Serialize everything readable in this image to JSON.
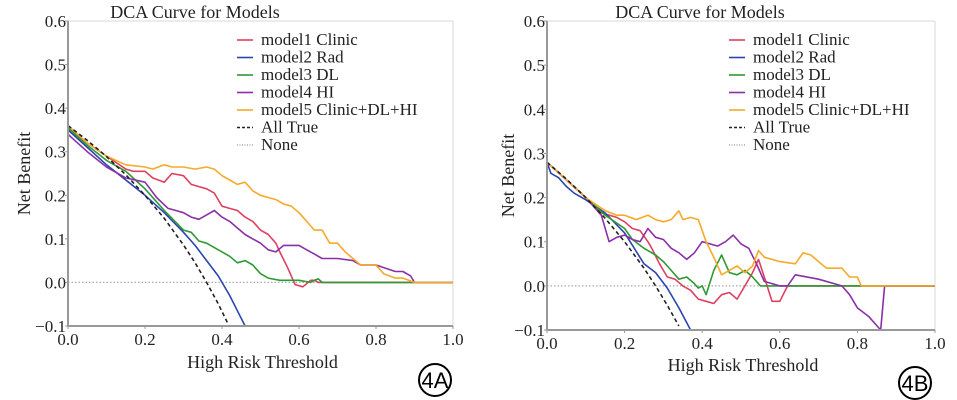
{
  "chart_data": [
    {
      "type": "line",
      "panel_label": "4A",
      "title": "DCA Curve for Models",
      "xlabel": "High Risk Threshold",
      "ylabel": "Net Benefit",
      "xlim": [
        0.0,
        1.0
      ],
      "ylim": [
        -0.1,
        0.6
      ],
      "xticks": [
        "0.0",
        "0.2",
        "0.4",
        "0.6",
        "0.8",
        "1.0"
      ],
      "yticks": [
        "−0.1",
        "0.0",
        "0.1",
        "0.2",
        "0.3",
        "0.4",
        "0.5",
        "0.6"
      ],
      "legend_position": "top-right",
      "grid": false,
      "series": [
        {
          "name": "model1 Clinic",
          "color": "#e0405f",
          "style": "solid",
          "x": [
            0.0,
            0.05,
            0.1,
            0.15,
            0.17,
            0.2,
            0.22,
            0.25,
            0.27,
            0.3,
            0.32,
            0.34,
            0.36,
            0.38,
            0.4,
            0.42,
            0.44,
            0.46,
            0.48,
            0.5,
            0.52,
            0.54,
            0.55,
            0.57,
            0.59,
            0.61,
            0.63,
            0.64,
            0.65,
            0.66,
            0.7,
            1.0
          ],
          "y": [
            0.355,
            0.32,
            0.29,
            0.26,
            0.255,
            0.255,
            0.24,
            0.23,
            0.25,
            0.245,
            0.225,
            0.22,
            0.215,
            0.205,
            0.175,
            0.17,
            0.165,
            0.15,
            0.14,
            0.12,
            0.11,
            0.09,
            0.07,
            0.035,
            -0.005,
            -0.01,
            0.005,
            0.005,
            0.0,
            0.0,
            0.0,
            0.0
          ]
        },
        {
          "name": "model2 Rad",
          "color": "#2a45b0",
          "style": "solid",
          "x": [
            0.0,
            0.05,
            0.1,
            0.15,
            0.2,
            0.25,
            0.3,
            0.33,
            0.36,
            0.39,
            0.42,
            0.44,
            0.46
          ],
          "y": [
            0.35,
            0.31,
            0.27,
            0.235,
            0.2,
            0.16,
            0.115,
            0.085,
            0.05,
            0.015,
            -0.03,
            -0.065,
            -0.1
          ]
        },
        {
          "name": "model3 DL",
          "color": "#2e9a35",
          "style": "solid",
          "x": [
            0.0,
            0.05,
            0.1,
            0.15,
            0.2,
            0.25,
            0.3,
            0.32,
            0.34,
            0.36,
            0.38,
            0.4,
            0.42,
            0.44,
            0.46,
            0.48,
            0.5,
            0.52,
            0.55,
            0.6,
            0.63,
            0.64,
            0.65,
            0.66,
            0.7,
            1.0
          ],
          "y": [
            0.355,
            0.315,
            0.28,
            0.255,
            0.215,
            0.165,
            0.12,
            0.115,
            0.095,
            0.09,
            0.08,
            0.07,
            0.06,
            0.045,
            0.05,
            0.04,
            0.02,
            0.01,
            0.005,
            0.005,
            0.0,
            0.005,
            0.008,
            0.0,
            0.0,
            0.0
          ]
        },
        {
          "name": "model4 HI",
          "color": "#8a2fa8",
          "style": "solid",
          "x": [
            0.0,
            0.05,
            0.1,
            0.15,
            0.2,
            0.23,
            0.26,
            0.28,
            0.3,
            0.32,
            0.34,
            0.36,
            0.38,
            0.4,
            0.42,
            0.44,
            0.46,
            0.48,
            0.5,
            0.52,
            0.54,
            0.56,
            0.58,
            0.6,
            0.62,
            0.64,
            0.66,
            0.7,
            0.74,
            0.76,
            0.8,
            0.85,
            0.87,
            0.89,
            0.9,
            1.0
          ],
          "y": [
            0.34,
            0.3,
            0.265,
            0.24,
            0.23,
            0.195,
            0.17,
            0.165,
            0.16,
            0.15,
            0.145,
            0.155,
            0.165,
            0.15,
            0.14,
            0.125,
            0.11,
            0.1,
            0.09,
            0.075,
            0.07,
            0.085,
            0.085,
            0.085,
            0.075,
            0.065,
            0.055,
            0.055,
            0.05,
            0.04,
            0.04,
            0.025,
            0.025,
            0.015,
            0.0,
            0.0
          ]
        },
        {
          "name": "model5 Clinic+DL+HI",
          "color": "#f5aa2a",
          "style": "solid",
          "x": [
            0.0,
            0.05,
            0.1,
            0.15,
            0.2,
            0.22,
            0.25,
            0.27,
            0.3,
            0.33,
            0.36,
            0.38,
            0.4,
            0.42,
            0.44,
            0.46,
            0.48,
            0.5,
            0.52,
            0.54,
            0.56,
            0.58,
            0.6,
            0.62,
            0.64,
            0.66,
            0.68,
            0.7,
            0.72,
            0.74,
            0.76,
            0.78,
            0.8,
            0.82,
            0.85,
            0.87,
            0.9,
            1.0
          ],
          "y": [
            0.36,
            0.32,
            0.29,
            0.27,
            0.265,
            0.26,
            0.27,
            0.265,
            0.265,
            0.26,
            0.265,
            0.26,
            0.245,
            0.235,
            0.225,
            0.23,
            0.21,
            0.2,
            0.195,
            0.19,
            0.18,
            0.175,
            0.16,
            0.14,
            0.12,
            0.12,
            0.09,
            0.09,
            0.07,
            0.055,
            0.04,
            0.04,
            0.04,
            0.02,
            0.01,
            0.01,
            0.0,
            0.0
          ]
        },
        {
          "name": "All True",
          "color": "#222222",
          "style": "dashed",
          "prevalence": 0.36,
          "x": [
            0.0,
            0.05,
            0.1,
            0.15,
            0.2,
            0.25,
            0.3,
            0.33,
            0.36,
            0.39,
            0.42
          ],
          "y": [
            0.36,
            0.326,
            0.289,
            0.247,
            0.2,
            0.147,
            0.086,
            0.045,
            0.0,
            -0.049,
            -0.103
          ]
        },
        {
          "name": "None",
          "color": "#aaaaaa",
          "style": "dotted",
          "x": [
            0.0,
            1.0
          ],
          "y": [
            0.0,
            0.0
          ]
        }
      ]
    },
    {
      "type": "line",
      "panel_label": "4B",
      "title": "DCA Curve for Models",
      "xlabel": "High Risk Threshold",
      "ylabel": "Net Benefit",
      "xlim": [
        0.0,
        1.0
      ],
      "ylim": [
        -0.1,
        0.6
      ],
      "xticks": [
        "0.0",
        "0.2",
        "0.4",
        "0.6",
        "0.8",
        "1.0"
      ],
      "yticks": [
        "−0.1",
        "0.0",
        "0.1",
        "0.2",
        "0.3",
        "0.4",
        "0.5",
        "0.6"
      ],
      "legend_position": "top-right",
      "grid": false,
      "series": [
        {
          "name": "model1 Clinic",
          "color": "#e0405f",
          "style": "solid",
          "x": [
            0.0,
            0.05,
            0.1,
            0.14,
            0.16,
            0.18,
            0.2,
            0.22,
            0.24,
            0.26,
            0.27,
            0.29,
            0.31,
            0.33,
            0.35,
            0.37,
            0.39,
            0.41,
            0.43,
            0.45,
            0.47,
            0.49,
            0.51,
            0.53,
            0.545,
            0.56,
            0.58,
            0.6,
            0.62,
            1.0
          ],
          "y": [
            0.28,
            0.24,
            0.2,
            0.165,
            0.16,
            0.155,
            0.145,
            0.13,
            0.125,
            0.1,
            0.085,
            0.05,
            0.02,
            0.015,
            0.0,
            -0.01,
            -0.03,
            -0.035,
            -0.04,
            -0.02,
            -0.015,
            -0.03,
            0.0,
            0.03,
            0.06,
            0.02,
            -0.035,
            -0.035,
            0.0,
            0.0
          ]
        },
        {
          "name": "model2 Rad",
          "color": "#2a45b0",
          "style": "solid",
          "x": [
            0.0,
            0.01,
            0.03,
            0.05,
            0.07,
            0.1,
            0.15,
            0.2,
            0.25,
            0.28,
            0.31,
            0.34,
            0.37
          ],
          "y": [
            0.28,
            0.255,
            0.245,
            0.225,
            0.21,
            0.195,
            0.165,
            0.12,
            0.05,
            0.03,
            -0.005,
            -0.05,
            -0.1
          ]
        },
        {
          "name": "model3 DL",
          "color": "#2e9a35",
          "style": "solid",
          "x": [
            0.0,
            0.05,
            0.1,
            0.15,
            0.2,
            0.22,
            0.25,
            0.28,
            0.3,
            0.32,
            0.34,
            0.36,
            0.38,
            0.39,
            0.4,
            0.41,
            0.43,
            0.45,
            0.47,
            0.49,
            0.51,
            0.53,
            0.55,
            0.6,
            0.7,
            0.8,
            1.0
          ],
          "y": [
            0.28,
            0.24,
            0.2,
            0.16,
            0.13,
            0.105,
            0.085,
            0.07,
            0.055,
            0.035,
            0.015,
            0.02,
            0.005,
            -0.005,
            0.0,
            -0.02,
            0.035,
            0.07,
            0.03,
            0.025,
            0.035,
            0.02,
            0.0,
            0.0,
            0.0,
            0.0,
            0.0
          ]
        },
        {
          "name": "model4 HI",
          "color": "#8a2fa8",
          "style": "solid",
          "x": [
            0.0,
            0.05,
            0.1,
            0.14,
            0.16,
            0.18,
            0.2,
            0.22,
            0.24,
            0.26,
            0.28,
            0.3,
            0.32,
            0.34,
            0.36,
            0.38,
            0.4,
            0.42,
            0.44,
            0.46,
            0.48,
            0.5,
            0.52,
            0.54,
            0.56,
            0.58,
            0.6,
            0.62,
            0.64,
            0.7,
            0.76,
            0.78,
            0.8,
            0.83,
            0.85,
            0.86,
            0.87,
            1.0
          ],
          "y": [
            0.28,
            0.24,
            0.2,
            0.16,
            0.1,
            0.11,
            0.115,
            0.105,
            0.1,
            0.13,
            0.11,
            0.105,
            0.085,
            0.075,
            0.06,
            0.075,
            0.1,
            0.095,
            0.09,
            0.1,
            0.115,
            0.095,
            0.085,
            0.05,
            0.01,
            0.005,
            0.0,
            0.0,
            0.025,
            0.015,
            0.0,
            -0.02,
            -0.05,
            -0.07,
            -0.09,
            -0.1,
            0.0,
            0.0
          ]
        },
        {
          "name": "model5 Clinic+DL+HI",
          "color": "#f5aa2a",
          "style": "solid",
          "x": [
            0.0,
            0.05,
            0.1,
            0.15,
            0.18,
            0.2,
            0.23,
            0.26,
            0.28,
            0.3,
            0.32,
            0.34,
            0.35,
            0.37,
            0.39,
            0.41,
            0.43,
            0.45,
            0.47,
            0.49,
            0.51,
            0.53,
            0.545,
            0.56,
            0.6,
            0.64,
            0.66,
            0.68,
            0.7,
            0.72,
            0.76,
            0.78,
            0.8,
            0.81,
            1.0
          ],
          "y": [
            0.28,
            0.24,
            0.2,
            0.17,
            0.16,
            0.16,
            0.15,
            0.16,
            0.15,
            0.145,
            0.15,
            0.17,
            0.15,
            0.155,
            0.15,
            0.1,
            0.065,
            0.025,
            0.035,
            0.045,
            0.03,
            0.045,
            0.08,
            0.065,
            0.055,
            0.05,
            0.075,
            0.07,
            0.055,
            0.04,
            0.04,
            0.02,
            0.02,
            0.0,
            0.0
          ]
        },
        {
          "name": "All True",
          "color": "#222222",
          "style": "dashed",
          "prevalence": 0.28,
          "x": [
            0.0,
            0.05,
            0.1,
            0.15,
            0.2,
            0.25,
            0.28,
            0.31,
            0.34
          ],
          "y": [
            0.28,
            0.242,
            0.2,
            0.153,
            0.1,
            0.04,
            0.0,
            -0.044,
            -0.091
          ]
        },
        {
          "name": "None",
          "color": "#aaaaaa",
          "style": "dotted",
          "x": [
            0.0,
            1.0
          ],
          "y": [
            0.0,
            0.0
          ]
        }
      ]
    }
  ]
}
